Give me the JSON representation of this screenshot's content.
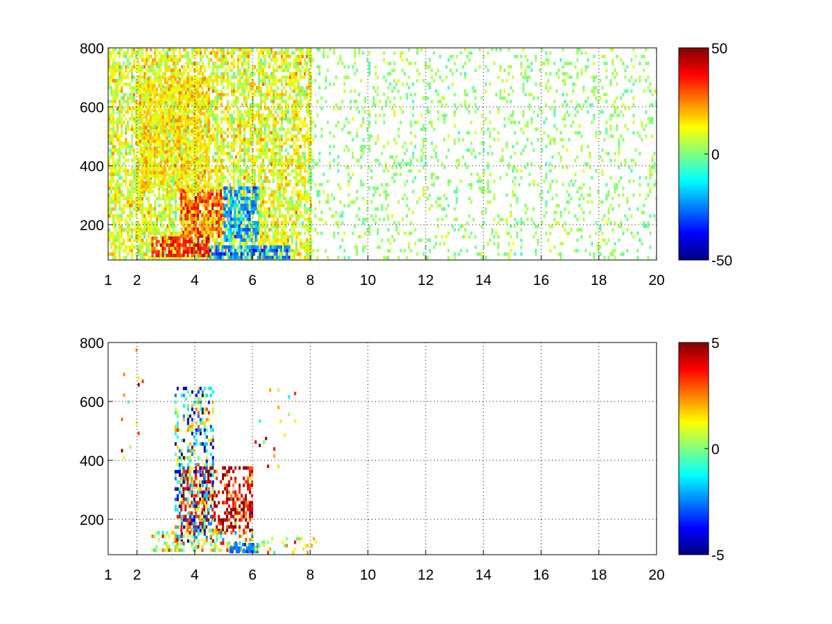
{
  "chart_data": [
    {
      "type": "heatmap",
      "title": "",
      "xlabel": "",
      "ylabel": "",
      "xlim": [
        1,
        20
      ],
      "ylim": [
        80,
        800
      ],
      "x_ticks": [
        1,
        2,
        4,
        6,
        8,
        10,
        12,
        14,
        16,
        18,
        20
      ],
      "y_ticks": [
        200,
        400,
        600,
        800
      ],
      "grid": true,
      "colorbar": {
        "min": -50,
        "max": 50,
        "ticks": [
          -50,
          0,
          50
        ],
        "colormap": "jet"
      },
      "regions": [
        {
          "x": [
            1.0,
            8.0
          ],
          "y": [
            80,
            800
          ],
          "density": 0.85,
          "mean": 10,
          "spread": 10
        },
        {
          "x": [
            2.5,
            4.5
          ],
          "y": [
            100,
            160
          ],
          "density": 0.95,
          "mean": 35,
          "spread": 8
        },
        {
          "x": [
            3.5,
            5.0
          ],
          "y": [
            160,
            320
          ],
          "density": 0.9,
          "mean": 28,
          "spread": 12
        },
        {
          "x": [
            2.0,
            4.5
          ],
          "y": [
            320,
            700
          ],
          "density": 0.9,
          "mean": 15,
          "spread": 8
        },
        {
          "x": [
            5.0,
            6.2
          ],
          "y": [
            150,
            330
          ],
          "density": 0.9,
          "mean": -22,
          "spread": 8
        },
        {
          "x": [
            4.5,
            7.3
          ],
          "y": [
            90,
            130
          ],
          "density": 0.9,
          "mean": -25,
          "spread": 10
        },
        {
          "x": [
            8.0,
            20.0
          ],
          "y": [
            80,
            800
          ],
          "density": 0.18,
          "mean": 2,
          "spread": 6
        }
      ]
    },
    {
      "type": "heatmap",
      "title": "",
      "xlabel": "",
      "ylabel": "",
      "xlim": [
        1,
        20
      ],
      "ylim": [
        80,
        800
      ],
      "x_ticks": [
        1,
        2,
        4,
        6,
        8,
        10,
        12,
        14,
        16,
        18,
        20
      ],
      "y_ticks": [
        200,
        400,
        600,
        800
      ],
      "grid": true,
      "colorbar": {
        "min": -5,
        "max": 5,
        "ticks": [
          -5,
          0,
          5
        ],
        "colormap": "jet"
      },
      "regions": [
        {
          "x": [
            3.5,
            6.0
          ],
          "y": [
            160,
            380
          ],
          "density": 0.6,
          "mean": 4,
          "spread": 1.5
        },
        {
          "x": [
            3.3,
            4.6
          ],
          "y": [
            120,
            650
          ],
          "density": 0.45,
          "mean": -1,
          "spread": 3.5
        },
        {
          "x": [
            2.5,
            6.0
          ],
          "y": [
            90,
            160
          ],
          "density": 0.5,
          "mean": 1,
          "spread": 2.5
        },
        {
          "x": [
            5.2,
            6.2
          ],
          "y": [
            90,
            120
          ],
          "density": 0.8,
          "mean": -2.5,
          "spread": 0.8
        },
        {
          "x": [
            6.0,
            8.2
          ],
          "y": [
            90,
            140
          ],
          "density": 0.25,
          "mean": 1,
          "spread": 2
        },
        {
          "x": [
            1.3,
            2.3
          ],
          "y": [
            400,
            780
          ],
          "density": 0.04,
          "mean": 2,
          "spread": 2.5
        },
        {
          "x": [
            6.0,
            7.5
          ],
          "y": [
            380,
            680
          ],
          "density": 0.05,
          "mean": 2,
          "spread": 2.5
        }
      ]
    }
  ]
}
